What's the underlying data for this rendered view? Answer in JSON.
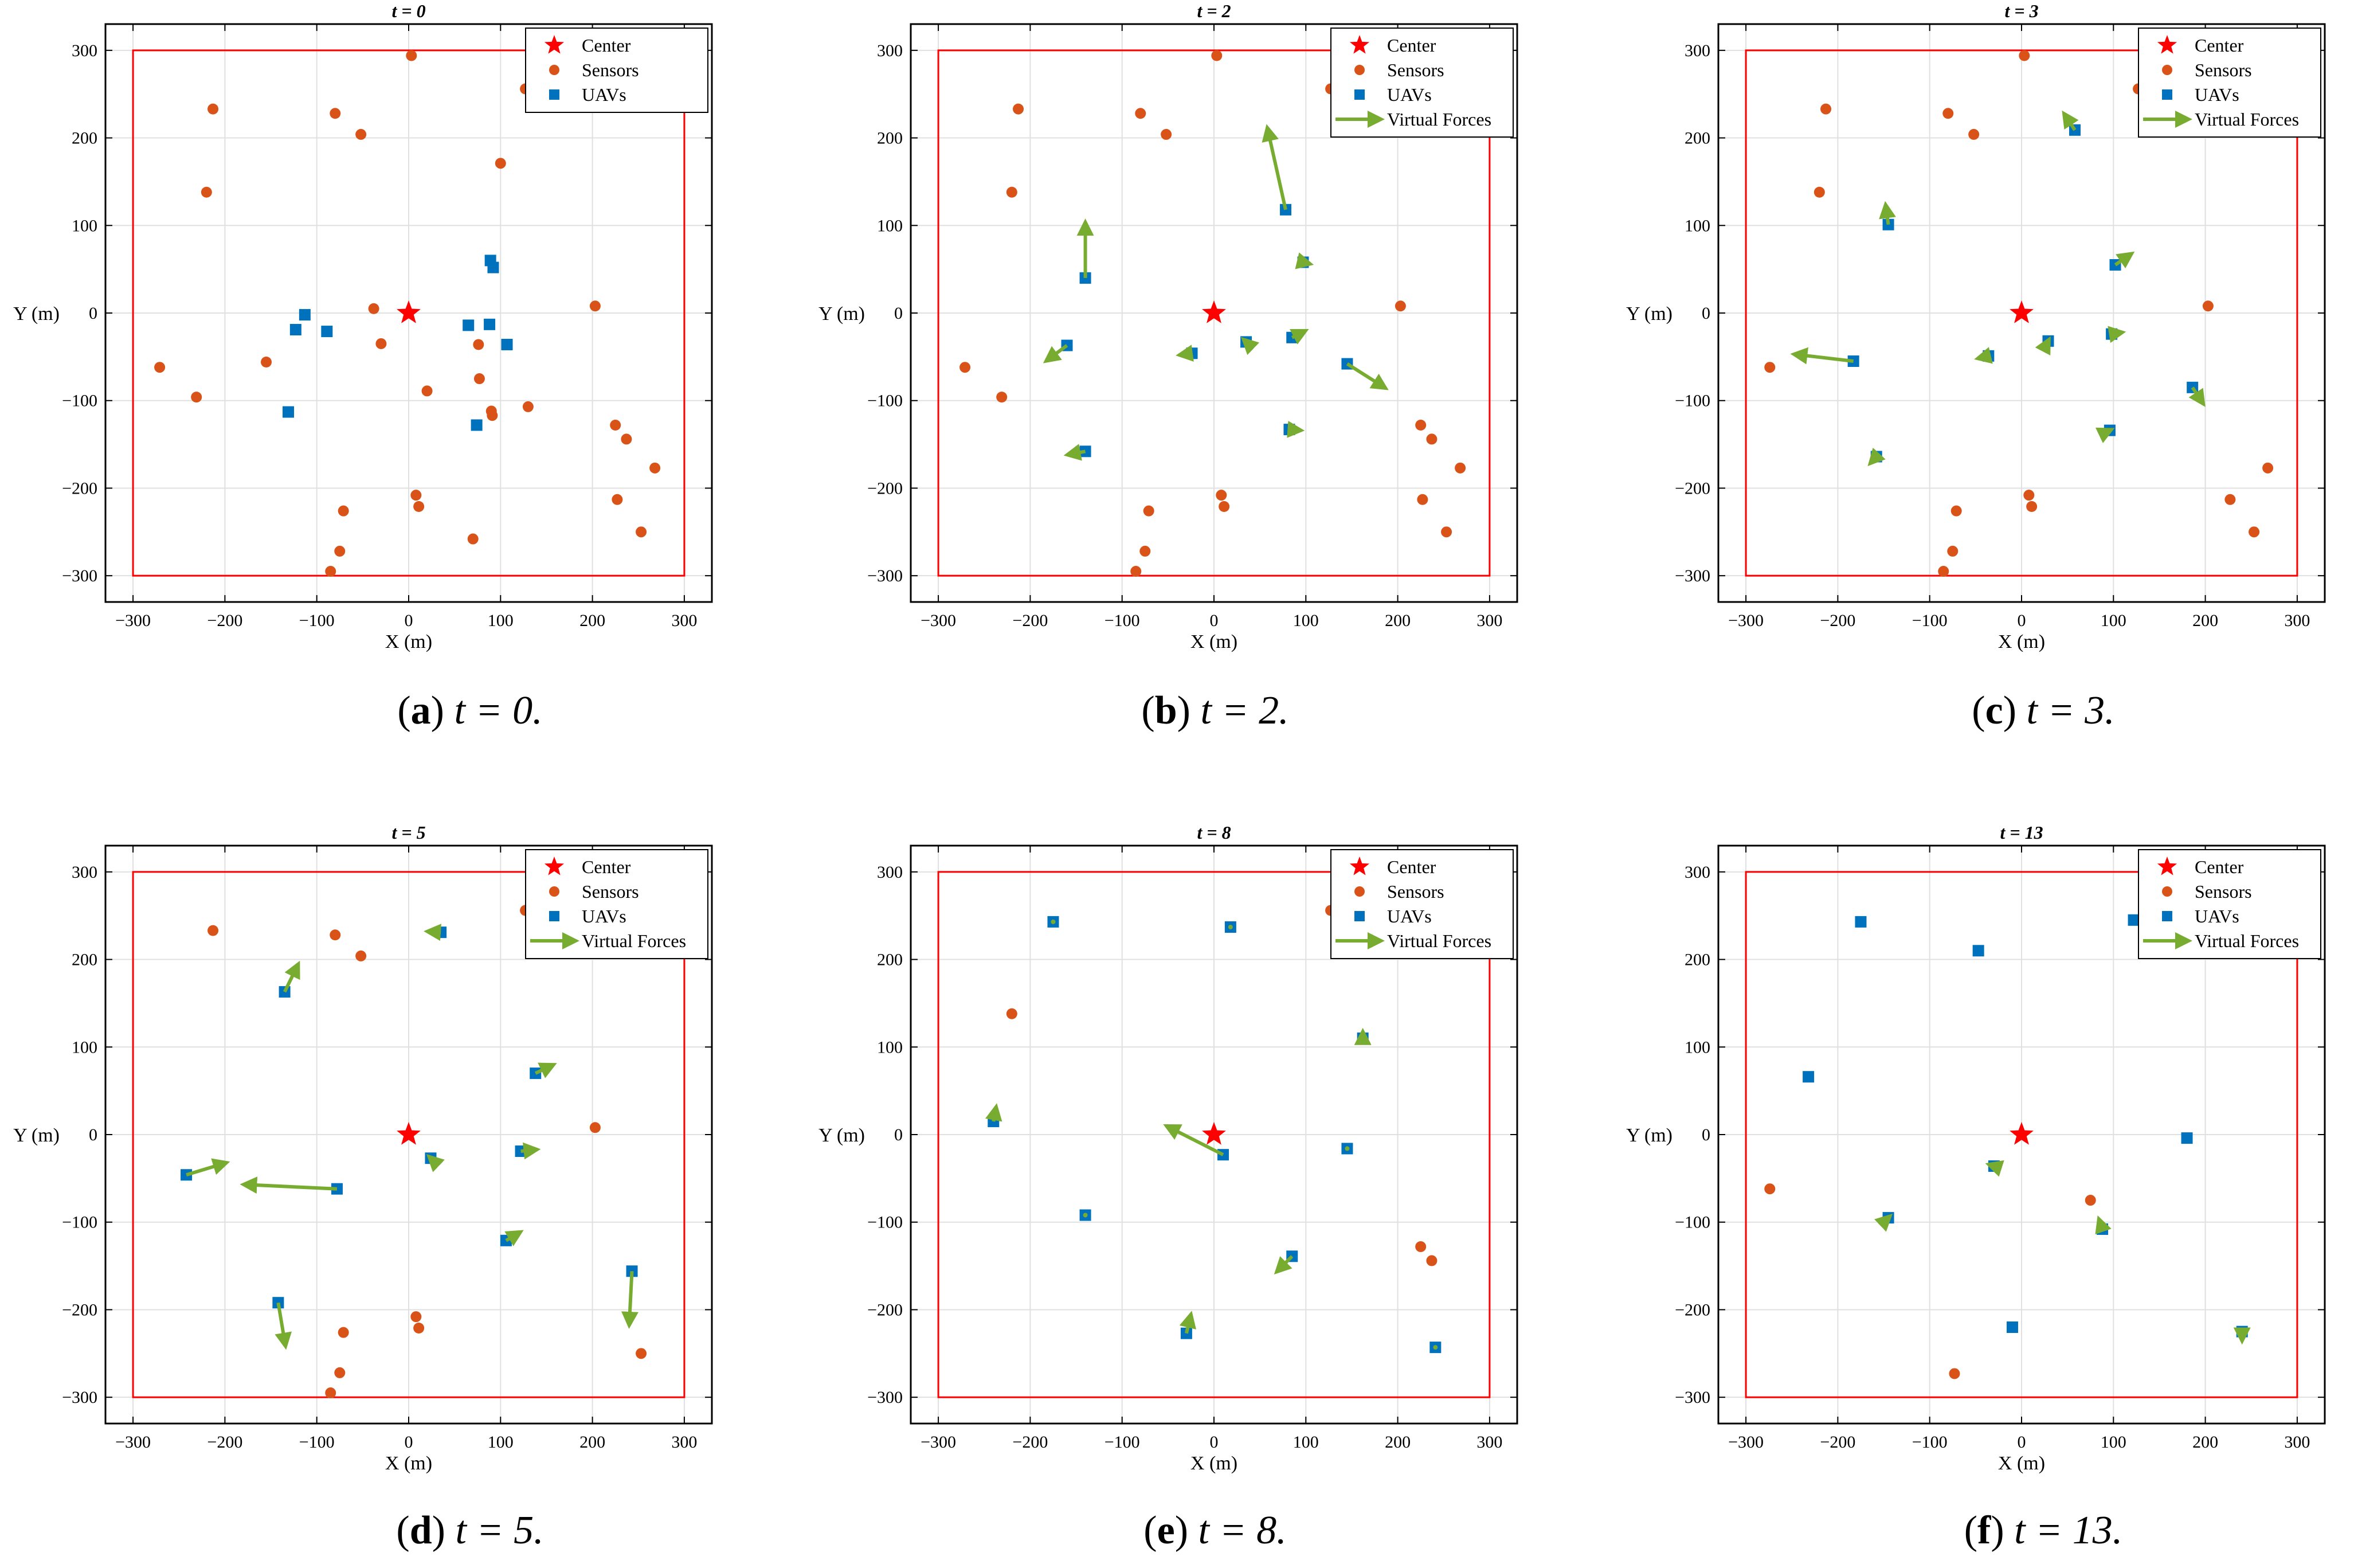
{
  "figure": {
    "captions": [
      {
        "letter": "a",
        "text": "t = 0."
      },
      {
        "letter": "b",
        "text": "t = 2."
      },
      {
        "letter": "c",
        "text": "t = 3."
      },
      {
        "letter": "d",
        "text": "t = 5."
      },
      {
        "letter": "e",
        "text": "t = 8."
      },
      {
        "letter": "f",
        "text": "t = 13."
      }
    ],
    "caption_parens": [
      "(",
      ")"
    ]
  },
  "colors": {
    "sensor": "#D95319",
    "uav": "#0072BD",
    "center": "#FF0000",
    "boundary": "#FF0000",
    "force": "#77AC30",
    "grid": "#E0E0E0"
  },
  "chart_data": [
    {
      "type": "scatter",
      "title": "t = 0",
      "xlabel": "X (m)",
      "ylabel": "Y (m)",
      "xlim": [
        -330,
        330
      ],
      "ylim": [
        -330,
        330
      ],
      "xticks": [
        -300,
        -200,
        -100,
        0,
        100,
        200,
        300
      ],
      "yticks": [
        -300,
        -200,
        -100,
        0,
        100,
        200,
        300
      ],
      "grid": true,
      "boundary": [
        -300,
        300,
        -300,
        300
      ],
      "legend": [
        "Center",
        "Sensors",
        "UAVs"
      ],
      "legend_position": "top-right",
      "center": [
        0,
        0
      ],
      "sensors": [
        [
          3,
          294
        ],
        [
          127,
          256
        ],
        [
          -213,
          233
        ],
        [
          -80,
          228
        ],
        [
          -52,
          204
        ],
        [
          100,
          171
        ],
        [
          -220,
          138
        ],
        [
          -38,
          5
        ],
        [
          203,
          8
        ],
        [
          -30,
          -35
        ],
        [
          -271,
          -62
        ],
        [
          -155,
          -56
        ],
        [
          20,
          -89
        ],
        [
          76,
          -36
        ],
        [
          77,
          -75
        ],
        [
          -231,
          -96
        ],
        [
          90,
          -112
        ],
        [
          91,
          -117
        ],
        [
          130,
          -107
        ],
        [
          225,
          -128
        ],
        [
          237,
          -144
        ],
        [
          268,
          -177
        ],
        [
          8,
          -208
        ],
        [
          11,
          -221
        ],
        [
          227,
          -213
        ],
        [
          -71,
          -226
        ],
        [
          -75,
          -272
        ],
        [
          70,
          -258
        ],
        [
          253,
          -250
        ],
        [
          -85,
          -295
        ]
      ],
      "uavs": [
        [
          -113,
          -2
        ],
        [
          -123,
          -19
        ],
        [
          -89,
          -21
        ],
        [
          -131,
          -113
        ],
        [
          89,
          60
        ],
        [
          92,
          52
        ],
        [
          65,
          -14
        ],
        [
          88,
          -13
        ],
        [
          107,
          -36
        ],
        [
          74,
          -128
        ]
      ],
      "forces": []
    },
    {
      "type": "scatter",
      "title": "t = 2",
      "xlabel": "X (m)",
      "ylabel": "Y (m)",
      "xlim": [
        -330,
        330
      ],
      "ylim": [
        -330,
        330
      ],
      "xticks": [
        -300,
        -200,
        -100,
        0,
        100,
        200,
        300
      ],
      "yticks": [
        -300,
        -200,
        -100,
        0,
        100,
        200,
        300
      ],
      "grid": true,
      "boundary": [
        -300,
        300,
        -300,
        300
      ],
      "legend": [
        "Center",
        "Sensors",
        "UAVs",
        "Virtual Forces"
      ],
      "legend_position": "top-right",
      "center": [
        0,
        0
      ],
      "sensors": [
        [
          3,
          294
        ],
        [
          127,
          256
        ],
        [
          -213,
          233
        ],
        [
          -80,
          228
        ],
        [
          -52,
          204
        ],
        [
          -220,
          138
        ],
        [
          203,
          8
        ],
        [
          -271,
          -62
        ],
        [
          -231,
          -96
        ],
        [
          225,
          -128
        ],
        [
          237,
          -144
        ],
        [
          268,
          -177
        ],
        [
          8,
          -208
        ],
        [
          11,
          -221
        ],
        [
          227,
          -213
        ],
        [
          -71,
          -226
        ],
        [
          -75,
          -272
        ],
        [
          253,
          -250
        ],
        [
          -85,
          -295
        ]
      ],
      "uavs": [
        [
          -140,
          40
        ],
        [
          -160,
          -37
        ],
        [
          -140,
          -158
        ],
        [
          78,
          118
        ],
        [
          97,
          58
        ],
        [
          -24,
          -46
        ],
        [
          35,
          -33
        ],
        [
          85,
          -28
        ],
        [
          145,
          -58
        ],
        [
          82,
          -133
        ]
      ],
      "forces": [
        [
          [
            -140,
            40
          ],
          [
            -140,
            104
          ]
        ],
        [
          [
            -160,
            -37
          ],
          [
            -183,
            -55
          ]
        ],
        [
          [
            -140,
            -158
          ],
          [
            -160,
            -162
          ]
        ],
        [
          [
            78,
            118
          ],
          [
            58,
            212
          ]
        ],
        [
          [
            97,
            58
          ],
          [
            105,
            56
          ]
        ],
        [
          [
            -24,
            -46
          ],
          [
            -38,
            -48
          ]
        ],
        [
          [
            35,
            -33
          ],
          [
            32,
            -30
          ]
        ],
        [
          [
            85,
            -28
          ],
          [
            100,
            -20
          ]
        ],
        [
          [
            145,
            -58
          ],
          [
            187,
            -86
          ]
        ],
        [
          [
            82,
            -133
          ],
          [
            95,
            -134
          ]
        ]
      ]
    },
    {
      "type": "scatter",
      "title": "t = 3",
      "xlabel": "X (m)",
      "ylabel": "Y (m)",
      "xlim": [
        -330,
        330
      ],
      "ylim": [
        -330,
        330
      ],
      "xticks": [
        -300,
        -200,
        -100,
        0,
        100,
        200,
        300
      ],
      "yticks": [
        -300,
        -200,
        -100,
        0,
        100,
        200,
        300
      ],
      "grid": true,
      "boundary": [
        -300,
        300,
        -300,
        300
      ],
      "legend": [
        "Center",
        "Sensors",
        "UAVs",
        "Virtual Forces"
      ],
      "legend_position": "top-right",
      "center": [
        0,
        0
      ],
      "sensors": [
        [
          3,
          294
        ],
        [
          127,
          256
        ],
        [
          -213,
          233
        ],
        [
          -80,
          228
        ],
        [
          -52,
          204
        ],
        [
          -220,
          138
        ],
        [
          203,
          8
        ],
        [
          -274,
          -62
        ],
        [
          8,
          -208
        ],
        [
          11,
          -221
        ],
        [
          227,
          -213
        ],
        [
          268,
          -177
        ],
        [
          -71,
          -226
        ],
        [
          -75,
          -272
        ],
        [
          253,
          -250
        ],
        [
          -85,
          -295
        ]
      ],
      "uavs": [
        [
          -145,
          101
        ],
        [
          58,
          209
        ],
        [
          102,
          55
        ],
        [
          98,
          -24
        ],
        [
          -183,
          -55
        ],
        [
          -36,
          -49
        ],
        [
          29,
          -32
        ],
        [
          186,
          -85
        ],
        [
          96,
          -134
        ],
        [
          -158,
          -164
        ]
      ],
      "forces": [
        [
          [
            -145,
            101
          ],
          [
            -148,
            124
          ]
        ],
        [
          [
            58,
            209
          ],
          [
            46,
            228
          ]
        ],
        [
          [
            102,
            55
          ],
          [
            120,
            68
          ]
        ],
        [
          [
            98,
            -24
          ],
          [
            110,
            -22
          ]
        ],
        [
          [
            -183,
            -55
          ],
          [
            -248,
            -47
          ]
        ],
        [
          [
            -36,
            -49
          ],
          [
            -48,
            -52
          ]
        ],
        [
          [
            29,
            -32
          ],
          [
            30,
            -30
          ]
        ],
        [
          [
            186,
            -85
          ],
          [
            198,
            -104
          ]
        ],
        [
          [
            96,
            -134
          ],
          [
            98,
            -133
          ]
        ],
        [
          [
            -158,
            -164
          ],
          [
            -165,
            -172
          ]
        ]
      ]
    },
    {
      "type": "scatter",
      "title": "t = 5",
      "xlabel": "X (m)",
      "ylabel": "Y (m)",
      "xlim": [
        -330,
        330
      ],
      "ylim": [
        -330,
        330
      ],
      "xticks": [
        -300,
        -200,
        -100,
        0,
        100,
        200,
        300
      ],
      "yticks": [
        -300,
        -200,
        -100,
        0,
        100,
        200,
        300
      ],
      "grid": true,
      "boundary": [
        -300,
        300,
        -300,
        300
      ],
      "legend": [
        "Center",
        "Sensors",
        "UAVs",
        "Virtual Forces"
      ],
      "legend_position": "top-right",
      "center": [
        0,
        0
      ],
      "sensors": [
        [
          127,
          256
        ],
        [
          -213,
          233
        ],
        [
          -80,
          228
        ],
        [
          -52,
          204
        ],
        [
          203,
          8
        ],
        [
          8,
          -208
        ],
        [
          11,
          -221
        ],
        [
          -71,
          -226
        ],
        [
          -75,
          -272
        ],
        [
          253,
          -250
        ],
        [
          -85,
          -295
        ]
      ],
      "uavs": [
        [
          35,
          231
        ],
        [
          -135,
          163
        ],
        [
          138,
          70
        ],
        [
          -242,
          -46
        ],
        [
          -78,
          -62
        ],
        [
          24,
          -27
        ],
        [
          122,
          -19
        ],
        [
          106,
          -121
        ],
        [
          -142,
          -192
        ],
        [
          243,
          -156
        ]
      ],
      "forces": [
        [
          [
            35,
            231
          ],
          [
            20,
            232
          ]
        ],
        [
          [
            -135,
            163
          ],
          [
            -120,
            195
          ]
        ],
        [
          [
            138,
            70
          ],
          [
            158,
            80
          ]
        ],
        [
          [
            -242,
            -46
          ],
          [
            -198,
            -32
          ]
        ],
        [
          [
            -78,
            -62
          ],
          [
            -180,
            -57
          ]
        ],
        [
          [
            24,
            -27
          ],
          [
            22,
            -25
          ]
        ],
        [
          [
            122,
            -19
          ],
          [
            140,
            -17
          ]
        ],
        [
          [
            106,
            -121
          ],
          [
            122,
            -111
          ]
        ],
        [
          [
            -142,
            -192
          ],
          [
            -134,
            -242
          ]
        ],
        [
          [
            243,
            -156
          ],
          [
            240,
            -218
          ]
        ]
      ]
    },
    {
      "type": "scatter",
      "title": "t = 8",
      "xlabel": "X (m)",
      "ylabel": "Y (m)",
      "xlim": [
        -330,
        330
      ],
      "ylim": [
        -330,
        330
      ],
      "xticks": [
        -300,
        -200,
        -100,
        0,
        100,
        200,
        300
      ],
      "yticks": [
        -300,
        -200,
        -100,
        0,
        100,
        200,
        300
      ],
      "grid": true,
      "boundary": [
        -300,
        300,
        -300,
        300
      ],
      "legend": [
        "Center",
        "Sensors",
        "UAVs",
        "Virtual Forces"
      ],
      "legend_position": "top-right",
      "center": [
        0,
        0
      ],
      "sensors": [
        [
          127,
          256
        ],
        [
          -220,
          138
        ],
        [
          225,
          -128
        ],
        [
          237,
          -144
        ]
      ],
      "uavs": [
        [
          -175,
          243
        ],
        [
          18,
          237
        ],
        [
          162,
          110
        ],
        [
          -240,
          15
        ],
        [
          10,
          -23
        ],
        [
          145,
          -16
        ],
        [
          -140,
          -92
        ],
        [
          85,
          -139
        ],
        [
          -30,
          -227
        ],
        [
          241,
          -243
        ]
      ],
      "forces": [
        [
          [
            -175,
            243
          ],
          [
            -175,
            243
          ]
        ],
        [
          [
            18,
            237
          ],
          [
            18,
            237
          ]
        ],
        [
          [
            162,
            110
          ],
          [
            162,
            118
          ]
        ],
        [
          [
            -240,
            15
          ],
          [
            -237,
            32
          ]
        ],
        [
          [
            10,
            -23
          ],
          [
            -52,
            10
          ]
        ],
        [
          [
            145,
            -16
          ],
          [
            145,
            -16
          ]
        ],
        [
          [
            -140,
            -92
          ],
          [
            -140,
            -92
          ]
        ],
        [
          [
            85,
            -139
          ],
          [
            68,
            -157
          ]
        ],
        [
          [
            -30,
            -227
          ],
          [
            -25,
            -205
          ]
        ],
        [
          [
            241,
            -243
          ],
          [
            241,
            -243
          ]
        ]
      ]
    },
    {
      "type": "scatter",
      "title": "t = 13",
      "xlabel": "X (m)",
      "ylabel": "Y (m)",
      "xlim": [
        -330,
        330
      ],
      "ylim": [
        -330,
        330
      ],
      "xticks": [
        -300,
        -200,
        -100,
        0,
        100,
        200,
        300
      ],
      "yticks": [
        -300,
        -200,
        -100,
        0,
        100,
        200,
        300
      ],
      "grid": true,
      "boundary": [
        -300,
        300,
        -300,
        300
      ],
      "legend": [
        "Center",
        "Sensors",
        "UAVs",
        "Virtual Forces"
      ],
      "legend_position": "top-right",
      "center": [
        0,
        0
      ],
      "sensors": [
        [
          -274,
          -62
        ],
        [
          75,
          -75
        ],
        [
          -73,
          -273
        ]
      ],
      "uavs": [
        [
          -175,
          243
        ],
        [
          -47,
          210
        ],
        [
          122,
          245
        ],
        [
          -232,
          66
        ],
        [
          180,
          -4
        ],
        [
          -30,
          -36
        ],
        [
          -145,
          -95
        ],
        [
          88,
          -108
        ],
        [
          -10,
          -220
        ],
        [
          240,
          -225
        ]
      ],
      "forces": [
        [
          [
            -30,
            -36
          ],
          [
            -36,
            -34
          ]
        ],
        [
          [
            88,
            -108
          ],
          [
            84,
            -96
          ]
        ],
        [
          [
            240,
            -225
          ],
          [
            240,
            -236
          ]
        ],
        [
          [
            -145,
            -95
          ],
          [
            -143,
            -93
          ]
        ]
      ]
    }
  ]
}
